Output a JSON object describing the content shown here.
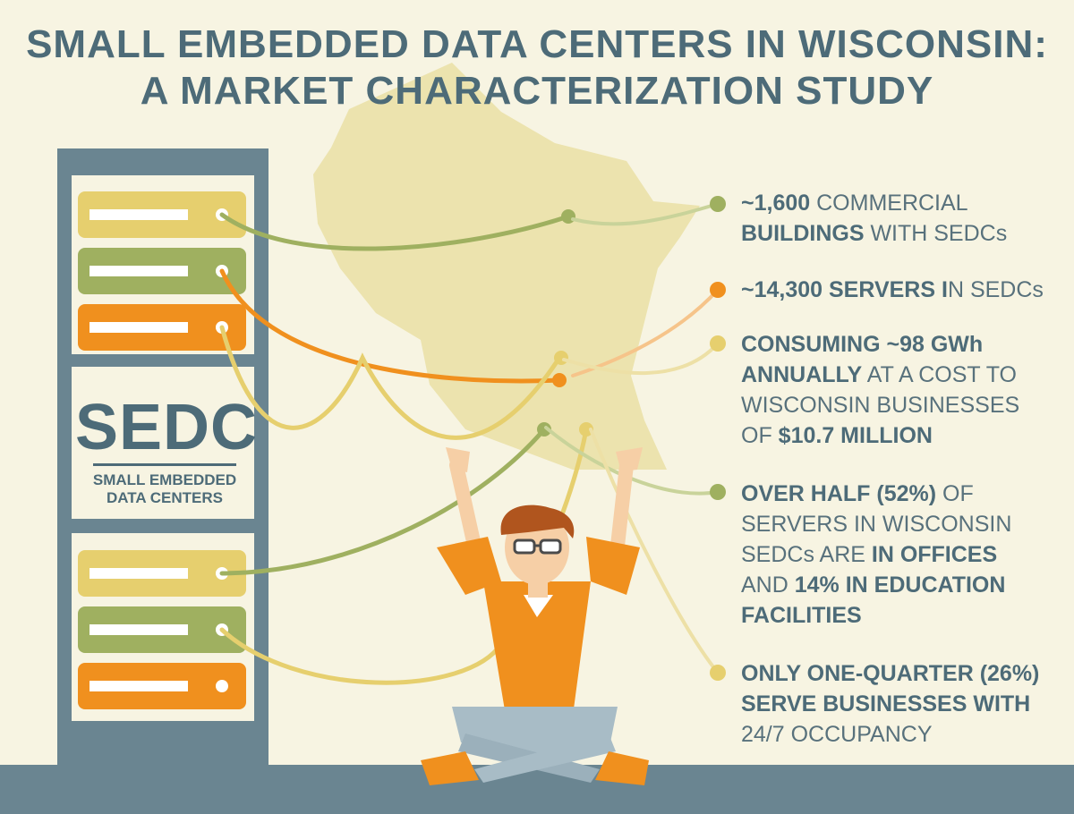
{
  "title": {
    "line1": "SMALL EMBEDDED DATA CENTERS IN WISCONSIN:",
    "line2": "A MARKET CHARACTERIZATION STUDY"
  },
  "rack_label": {
    "acronym": "SEDC",
    "line1": "SMALL EMBEDDED",
    "line2": "DATA CENTERS"
  },
  "facts": [
    {
      "color": "#9fb060",
      "lines": [
        [
          {
            "t": "~1,600",
            "b": true
          },
          {
            "t": " COMMERCIAL",
            "b": false
          }
        ],
        [
          {
            "t": "BUILDINGS",
            "b": true
          },
          {
            "t": " WITH SEDCs",
            "b": false
          }
        ]
      ]
    },
    {
      "color": "#f0901e",
      "lines": [
        [
          {
            "t": "~14,300 SERVERS I",
            "b": true
          },
          {
            "t": "N SEDCs",
            "b": false
          }
        ]
      ]
    },
    {
      "color": "#e6cf6e",
      "lines": [
        [
          {
            "t": "CONSUMING ~98 GWh",
            "b": true
          }
        ],
        [
          {
            "t": "ANNUALLY",
            "b": true
          },
          {
            "t": " AT A COST TO",
            "b": false
          }
        ],
        [
          {
            "t": "WISCONSIN BUSINESSES",
            "b": false
          }
        ],
        [
          {
            "t": "OF ",
            "b": false
          },
          {
            "t": "$10.7 MILLION",
            "b": true
          }
        ]
      ]
    },
    {
      "color": "#9fb060",
      "lines": [
        [
          {
            "t": "OVER HALF (52%)",
            "b": true
          },
          {
            "t": " OF",
            "b": false
          }
        ],
        [
          {
            "t": "SERVERS IN WISCONSIN",
            "b": false
          }
        ],
        [
          {
            "t": "SEDCs ARE ",
            "b": false
          },
          {
            "t": "IN OFFICES",
            "b": true
          }
        ],
        [
          {
            "t": "AND ",
            "b": false
          },
          {
            "t": "14% IN EDUCATION",
            "b": true
          }
        ],
        [
          {
            "t": "FACILITIES",
            "b": true
          }
        ]
      ]
    },
    {
      "color": "#e6cf6e",
      "lines": [
        [
          {
            "t": "ONLY ONE-QUARTER (26%)",
            "b": true
          }
        ],
        [
          {
            "t": "SERVE BUSINESSES WITH",
            "b": true
          }
        ],
        [
          {
            "t": "24/7 OCCUPANCY",
            "b": false
          }
        ]
      ]
    }
  ],
  "colors": {
    "background": "#f7f4e2",
    "title": "#4d6b78",
    "rack": "#6a8591",
    "map": "#ece3ae",
    "green": "#9fb060",
    "orange": "#f0901e",
    "yellow": "#e6cf6e",
    "floor": "#6a8591"
  },
  "icons": [
    "wisconsin-map-icon",
    "server-rack-icon",
    "person-icon"
  ]
}
